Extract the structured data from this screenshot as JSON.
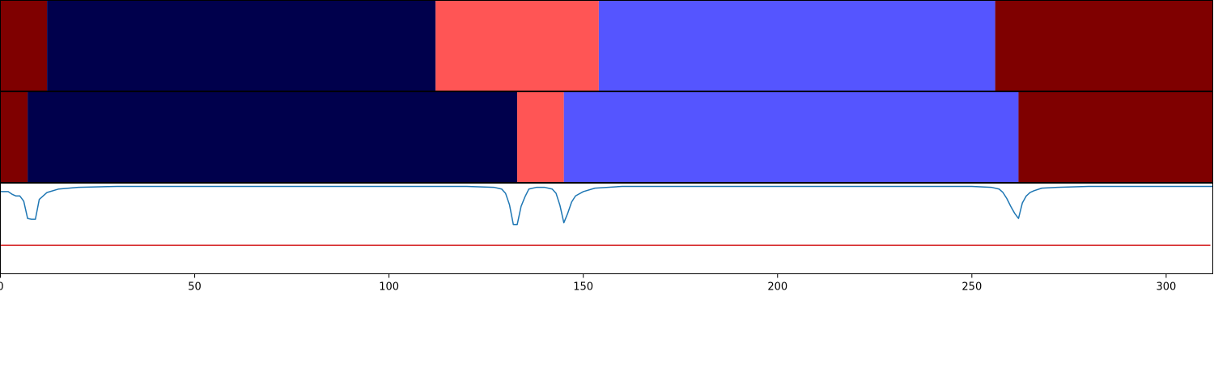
{
  "chart_data": {
    "type": "segmentation-timeline",
    "x_range": [
      0,
      312
    ],
    "x_ticks": [
      0,
      50,
      100,
      150,
      200,
      250,
      300
    ],
    "x_tick_labels": [
      "0",
      "50",
      "100",
      "150",
      "200",
      "250",
      "300"
    ],
    "grid": false,
    "legend": "none",
    "segment_rows": [
      {
        "segments": [
          {
            "start": 0,
            "end": 12,
            "color": "#7f0000"
          },
          {
            "start": 12,
            "end": 112,
            "color": "#00004c"
          },
          {
            "start": 112,
            "end": 154,
            "color": "#ff5555"
          },
          {
            "start": 154,
            "end": 256,
            "color": "#5555ff"
          },
          {
            "start": 256,
            "end": 312,
            "color": "#7f0000"
          }
        ]
      },
      {
        "segments": [
          {
            "start": 0,
            "end": 7,
            "color": "#7f0000"
          },
          {
            "start": 7,
            "end": 133,
            "color": "#00004c"
          },
          {
            "start": 133,
            "end": 145,
            "color": "#ff5555"
          },
          {
            "start": 145,
            "end": 262,
            "color": "#5555ff"
          },
          {
            "start": 262,
            "end": 312,
            "color": "#7f0000"
          }
        ]
      }
    ],
    "line_panel": {
      "y_range": [
        0,
        1
      ],
      "threshold": {
        "y": 0.32,
        "color": "#d62728"
      },
      "series": {
        "color": "#1f77b4",
        "x": [
          0,
          2,
          3,
          4,
          5,
          6,
          7,
          8,
          9,
          10,
          12,
          15,
          20,
          30,
          60,
          100,
          120,
          127,
          129,
          130,
          131,
          132,
          133,
          134,
          135,
          136,
          138,
          140,
          142,
          143,
          144,
          145,
          146,
          147,
          148,
          150,
          153,
          160,
          200,
          250,
          255,
          257,
          258,
          259,
          260,
          261,
          262,
          263,
          264,
          265,
          266,
          268,
          272,
          280,
          312
        ],
        "y": [
          0.94,
          0.94,
          0.91,
          0.89,
          0.89,
          0.83,
          0.63,
          0.62,
          0.62,
          0.85,
          0.93,
          0.97,
          0.99,
          1.0,
          1.0,
          1.0,
          1.0,
          0.99,
          0.97,
          0.92,
          0.79,
          0.56,
          0.56,
          0.77,
          0.88,
          0.97,
          0.99,
          0.99,
          0.97,
          0.92,
          0.78,
          0.58,
          0.69,
          0.82,
          0.89,
          0.94,
          0.98,
          1.0,
          1.0,
          1.0,
          0.99,
          0.97,
          0.93,
          0.86,
          0.77,
          0.69,
          0.63,
          0.81,
          0.89,
          0.93,
          0.95,
          0.98,
          0.99,
          1.0,
          1.0
        ]
      }
    }
  }
}
